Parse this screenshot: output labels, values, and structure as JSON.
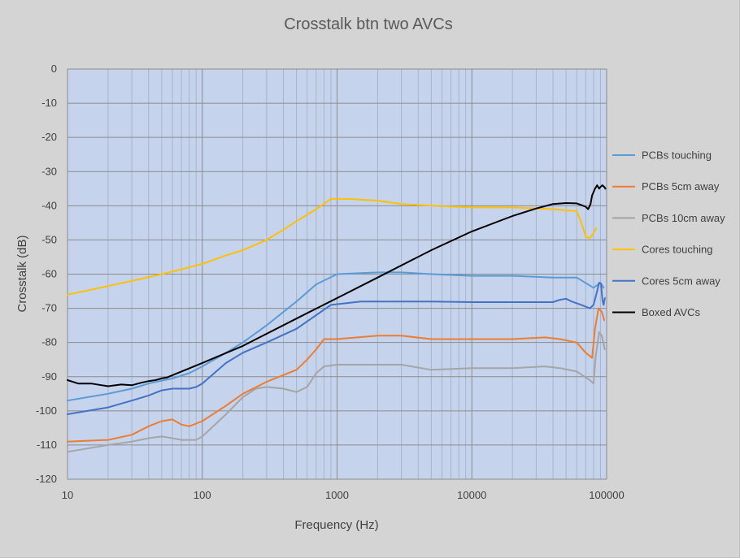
{
  "chart_data": {
    "type": "line",
    "title": "Crosstalk btn two AVCs",
    "xlabel": "Frequency (Hz)",
    "ylabel": "Crosstalk (dB)",
    "xscale": "log",
    "xlim": [
      10,
      100000
    ],
    "ylim": [
      -120,
      0
    ],
    "xticks": [
      10,
      100,
      1000,
      10000,
      100000
    ],
    "xtick_labels": [
      "10",
      "100",
      "1000",
      "10000",
      "100000"
    ],
    "yticks": [
      0,
      -10,
      -20,
      -30,
      -40,
      -50,
      -60,
      -70,
      -80,
      -90,
      -100,
      -110,
      -120
    ],
    "ytick_labels": [
      "0",
      "-10",
      "-20",
      "-30",
      "-40",
      "-50",
      "-60",
      "-70",
      "-80",
      "-90",
      "-100",
      "-110",
      "-120"
    ],
    "grid": true,
    "plot_background": "#c5d3ed",
    "legend_position": "right",
    "series": [
      {
        "name": "PCBs touching",
        "color": "#5b9bd5",
        "points": [
          [
            10,
            -97
          ],
          [
            20,
            -95
          ],
          [
            30,
            -93.5
          ],
          [
            40,
            -92
          ],
          [
            60,
            -90.5
          ],
          [
            80,
            -89
          ],
          [
            100,
            -87
          ],
          [
            150,
            -83
          ],
          [
            200,
            -80
          ],
          [
            300,
            -75
          ],
          [
            500,
            -68
          ],
          [
            700,
            -63
          ],
          [
            1000,
            -60
          ],
          [
            2000,
            -59.5
          ],
          [
            3000,
            -59.5
          ],
          [
            5000,
            -60
          ],
          [
            10000,
            -60.5
          ],
          [
            20000,
            -60.5
          ],
          [
            40000,
            -61
          ],
          [
            60000,
            -61
          ],
          [
            80000,
            -64
          ],
          [
            90000,
            -62.5
          ],
          [
            95000,
            -64
          ]
        ]
      },
      {
        "name": "PCBs 5cm away",
        "color": "#ed7d31",
        "points": [
          [
            10,
            -109
          ],
          [
            20,
            -108.5
          ],
          [
            30,
            -107
          ],
          [
            40,
            -104.5
          ],
          [
            50,
            -103
          ],
          [
            60,
            -102.5
          ],
          [
            70,
            -104
          ],
          [
            80,
            -104.5
          ],
          [
            100,
            -103
          ],
          [
            150,
            -98.5
          ],
          [
            200,
            -95
          ],
          [
            300,
            -91.5
          ],
          [
            500,
            -88
          ],
          [
            600,
            -85
          ],
          [
            700,
            -82
          ],
          [
            800,
            -79
          ],
          [
            1000,
            -79
          ],
          [
            2000,
            -78
          ],
          [
            3000,
            -78
          ],
          [
            5000,
            -79
          ],
          [
            10000,
            -79
          ],
          [
            20000,
            -79
          ],
          [
            35000,
            -78.5
          ],
          [
            45000,
            -79
          ],
          [
            60000,
            -80
          ],
          [
            70000,
            -83
          ],
          [
            78000,
            -84.5
          ],
          [
            82000,
            -76
          ],
          [
            87000,
            -70
          ],
          [
            92000,
            -71
          ],
          [
            96000,
            -73.5
          ]
        ]
      },
      {
        "name": "PCBs 10cm away",
        "color": "#a5a5a5",
        "points": [
          [
            10,
            -112
          ],
          [
            20,
            -110
          ],
          [
            30,
            -109
          ],
          [
            40,
            -108
          ],
          [
            50,
            -107.5
          ],
          [
            60,
            -108
          ],
          [
            70,
            -108.5
          ],
          [
            90,
            -108.5
          ],
          [
            100,
            -107.5
          ],
          [
            150,
            -101
          ],
          [
            200,
            -96
          ],
          [
            250,
            -93.5
          ],
          [
            300,
            -93
          ],
          [
            400,
            -93.5
          ],
          [
            500,
            -94.5
          ],
          [
            600,
            -93
          ],
          [
            700,
            -89
          ],
          [
            800,
            -87
          ],
          [
            1000,
            -86.5
          ],
          [
            2000,
            -86.5
          ],
          [
            3000,
            -86.5
          ],
          [
            5000,
            -88
          ],
          [
            10000,
            -87.5
          ],
          [
            20000,
            -87.5
          ],
          [
            35000,
            -87
          ],
          [
            45000,
            -87.5
          ],
          [
            60000,
            -88.5
          ],
          [
            75000,
            -91
          ],
          [
            80000,
            -92
          ],
          [
            83000,
            -84
          ],
          [
            88000,
            -77
          ],
          [
            92000,
            -78
          ],
          [
            97000,
            -82
          ]
        ]
      },
      {
        "name": "Cores touching",
        "color": "#ffc000",
        "points": [
          [
            10,
            -66
          ],
          [
            20,
            -63.5
          ],
          [
            30,
            -62
          ],
          [
            50,
            -60
          ],
          [
            80,
            -58
          ],
          [
            100,
            -57
          ],
          [
            150,
            -54.5
          ],
          [
            200,
            -53
          ],
          [
            300,
            -50
          ],
          [
            400,
            -47
          ],
          [
            500,
            -44.5
          ],
          [
            700,
            -41
          ],
          [
            900,
            -38
          ],
          [
            1200,
            -38
          ],
          [
            2000,
            -38.5
          ],
          [
            3000,
            -39.5
          ],
          [
            5000,
            -40
          ],
          [
            10000,
            -40.5
          ],
          [
            20000,
            -40.5
          ],
          [
            40000,
            -41
          ],
          [
            55000,
            -41.5
          ],
          [
            60000,
            -41.5
          ],
          [
            65000,
            -45
          ],
          [
            70000,
            -49
          ],
          [
            75000,
            -49.5
          ],
          [
            80000,
            -48
          ],
          [
            84000,
            -46.5
          ]
        ]
      },
      {
        "name": "Cores 5cm away",
        "color": "#4472c4",
        "points": [
          [
            10,
            -101
          ],
          [
            20,
            -99
          ],
          [
            30,
            -97
          ],
          [
            40,
            -95.5
          ],
          [
            50,
            -94
          ],
          [
            60,
            -93.5
          ],
          [
            80,
            -93.5
          ],
          [
            90,
            -93
          ],
          [
            100,
            -92
          ],
          [
            150,
            -86
          ],
          [
            200,
            -83
          ],
          [
            300,
            -80
          ],
          [
            500,
            -76
          ],
          [
            700,
            -72
          ],
          [
            900,
            -69
          ],
          [
            1500,
            -68
          ],
          [
            2500,
            -68
          ],
          [
            5000,
            -68
          ],
          [
            10000,
            -68.2
          ],
          [
            20000,
            -68.2
          ],
          [
            40000,
            -68.2
          ],
          [
            45000,
            -67.5
          ],
          [
            50000,
            -67.2
          ],
          [
            55000,
            -68
          ],
          [
            65000,
            -69
          ],
          [
            75000,
            -70
          ],
          [
            80000,
            -69
          ],
          [
            85000,
            -65
          ],
          [
            88000,
            -62.5
          ],
          [
            91000,
            -63
          ],
          [
            93000,
            -67.5
          ],
          [
            95000,
            -69
          ],
          [
            97000,
            -67
          ]
        ]
      },
      {
        "name": "Boxed AVCs",
        "color": "#000000",
        "points": [
          [
            10,
            -91
          ],
          [
            12,
            -92
          ],
          [
            15,
            -92
          ],
          [
            18,
            -92.5
          ],
          [
            20,
            -92.8
          ],
          [
            25,
            -92.3
          ],
          [
            30,
            -92.5
          ],
          [
            35,
            -91.8
          ],
          [
            40,
            -91.3
          ],
          [
            45,
            -91
          ],
          [
            50,
            -90.5
          ],
          [
            55,
            -90.2
          ],
          [
            70,
            -88.5
          ],
          [
            100,
            -86
          ],
          [
            200,
            -81
          ],
          [
            500,
            -73
          ],
          [
            1000,
            -67
          ],
          [
            2000,
            -61
          ],
          [
            5000,
            -53
          ],
          [
            10000,
            -47.5
          ],
          [
            20000,
            -43
          ],
          [
            30000,
            -40.8
          ],
          [
            40000,
            -39.5
          ],
          [
            50000,
            -39.2
          ],
          [
            60000,
            -39.3
          ],
          [
            65000,
            -39.8
          ],
          [
            70000,
            -40.3
          ],
          [
            73000,
            -41
          ],
          [
            76000,
            -39.5
          ],
          [
            78000,
            -37
          ],
          [
            80000,
            -36
          ],
          [
            82000,
            -35
          ],
          [
            85000,
            -34
          ],
          [
            88000,
            -35
          ],
          [
            90000,
            -34.5
          ],
          [
            93000,
            -34
          ],
          [
            96000,
            -34.5
          ],
          [
            98000,
            -35
          ]
        ]
      }
    ]
  }
}
